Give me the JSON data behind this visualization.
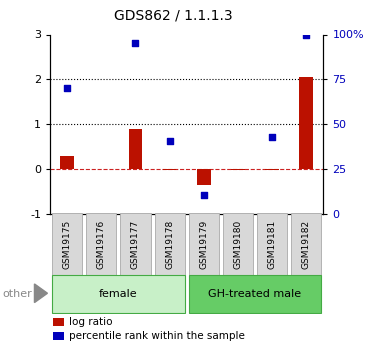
{
  "title": "GDS862 / 1.1.1.3",
  "samples": [
    "GSM19175",
    "GSM19176",
    "GSM19177",
    "GSM19178",
    "GSM19179",
    "GSM19180",
    "GSM19181",
    "GSM19182"
  ],
  "log_ratios": [
    0.28,
    0.0,
    0.9,
    -0.02,
    -0.35,
    -0.02,
    -0.02,
    2.05
  ],
  "percentile_y": [
    1.8,
    null,
    2.82,
    0.62,
    -0.58,
    null,
    0.72,
    2.98
  ],
  "groups": [
    {
      "label": "female",
      "start": 0,
      "end": 3,
      "color": "#c8f0c8"
    },
    {
      "label": "GH-treated male",
      "start": 4,
      "end": 7,
      "color": "#66cc66"
    }
  ],
  "bar_color": "#bb1100",
  "dot_color": "#0000bb",
  "ylim_left": [
    -1,
    3
  ],
  "ylim_right": [
    0,
    100
  ]
}
